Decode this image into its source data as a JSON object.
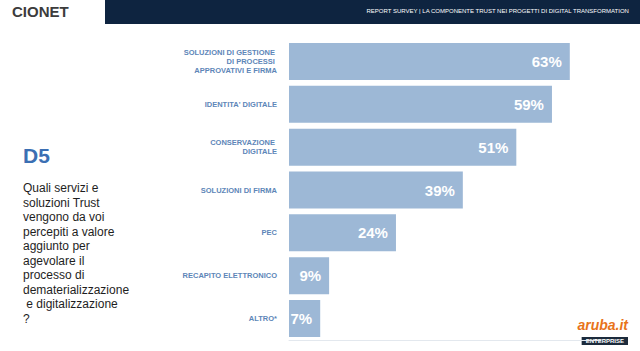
{
  "chart_data": {
    "type": "bar",
    "orientation": "horizontal",
    "title": "D5",
    "subtitle": "Quali servizi e soluzioni Trust vengono da voi percepiti a valore aggiunto per agevolare il processo di dematerializzazione e digitalizzazione?",
    "annotations": [
      "CIONET",
      "REPORT SURVEY | LA COMPONENTE TRUST NEI PROGETTI DI DIGITAL TRANSFORMATION",
      "aruba.it",
      "ENTERPRISE"
    ],
    "categories": [
      "SOLUZIONI DI GESTIONE DI PROCESSI APPROVATIVI E FIRMA",
      "IDENTITA' DIGITALE",
      "CONSERVAZIONE DIGITALE",
      "SOLUZIONI DI FIRMA",
      "PEC",
      "RECAPITO ELETTRONICO",
      "ALTRO*"
    ],
    "values": [
      63,
      59,
      51,
      39,
      24,
      9,
      7
    ],
    "value_labels": [
      "63%",
      "59%",
      "51%",
      "39%",
      "24%",
      "9%",
      "7%"
    ],
    "color": "#9db8d6",
    "xlim": [
      0,
      70
    ],
    "data_labels": true,
    "tick_labels": false,
    "grid": false
  }
}
